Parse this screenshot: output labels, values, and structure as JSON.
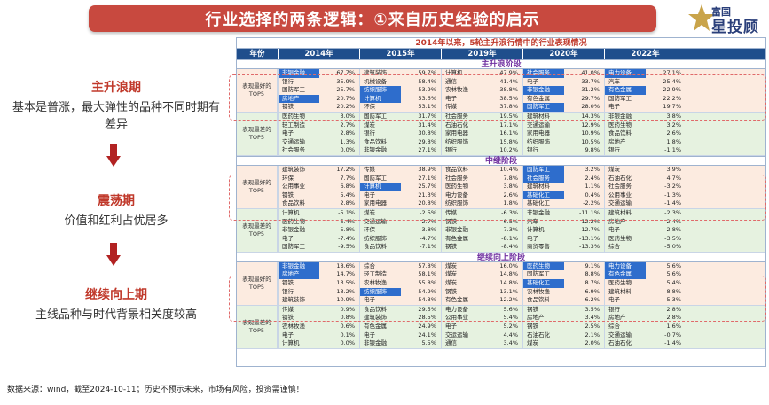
{
  "banner": {
    "title": "行业选择的两条逻辑：①来自历史经验的启示"
  },
  "logo": {
    "top": "富国",
    "main": "星投顾"
  },
  "left_panel": {
    "phases": [
      {
        "title": "主升浪期",
        "desc": "基本是普涨，最大弹性的品种不同时期有差异"
      },
      {
        "title": "震荡期",
        "desc": "价值和红利占优居多"
      },
      {
        "title": "继续向上期",
        "desc": "主线品种与时代背景相关度较高"
      }
    ]
  },
  "table": {
    "title": "2014年以来，5轮主升浪行情中的行业表现情况",
    "header": {
      "label": "年份",
      "years": [
        "2014年",
        "2015年",
        "2019年",
        "2020年",
        "2022年"
      ]
    },
    "best_label": "表现最好的TOP5",
    "worst_label": "表现最差的TOP5",
    "sections": [
      {
        "name": "主升浪阶段",
        "best": [
          [
            [
              "非银金融",
              "67.7%"
            ],
            [
              "银行",
              "35.9%"
            ],
            [
              "国防军工",
              "25.7%"
            ],
            [
              "房地产",
              "20.7%"
            ],
            [
              "钢铁",
              "20.2%"
            ]
          ],
          [
            [
              "建筑装饰",
              "59.7%"
            ],
            [
              "机械设备",
              "58.4%"
            ],
            [
              "纺织服饰",
              "53.9%"
            ],
            [
              "计算机",
              "53.6%"
            ],
            [
              "环保",
              "53.1%"
            ]
          ],
          [
            [
              "计算机",
              "47.9%"
            ],
            [
              "通信",
              "41.4%"
            ],
            [
              "农林牧渔",
              "38.8%"
            ],
            [
              "电子",
              "38.5%"
            ],
            [
              "传媒",
              "37.8%"
            ]
          ],
          [
            [
              "社会服务",
              "41.0%"
            ],
            [
              "电子",
              "33.7%"
            ],
            [
              "非银金融",
              "31.2%"
            ],
            [
              "有色金属",
              "29.7%"
            ],
            [
              "国防军工",
              "28.0%"
            ]
          ],
          [
            [
              "电力设备",
              "27.1%"
            ],
            [
              "汽车",
              "25.4%"
            ],
            [
              "有色金属",
              "22.9%"
            ],
            [
              "国防军工",
              "22.2%"
            ],
            [
              "电子",
              "19.7%"
            ]
          ]
        ],
        "best_hl": [
          [
            true,
            false,
            false,
            true,
            false
          ],
          [
            false,
            false,
            true,
            true,
            false
          ],
          [
            false,
            false,
            false,
            false,
            false
          ],
          [
            true,
            false,
            true,
            false,
            true
          ],
          [
            true,
            false,
            true,
            false,
            false
          ]
        ],
        "worst": [
          [
            [
              "医药生物",
              "3.0%"
            ],
            [
              "轻工制造",
              "2.7%"
            ],
            [
              "电子",
              "2.8%"
            ],
            [
              "交通运输",
              "1.3%"
            ],
            [
              "社会服务",
              "0.0%"
            ]
          ],
          [
            [
              "国防军工",
              "31.7%"
            ],
            [
              "煤炭",
              "31.4%"
            ],
            [
              "银行",
              "30.8%"
            ],
            [
              "食品饮料",
              "29.8%"
            ],
            [
              "非银金融",
              "27.1%"
            ]
          ],
          [
            [
              "社会服务",
              "19.5%"
            ],
            [
              "石油石化",
              "17.1%"
            ],
            [
              "家用电器",
              "16.1%"
            ],
            [
              "纺织服饰",
              "15.8%"
            ],
            [
              "银行",
              "10.2%"
            ]
          ],
          [
            [
              "建筑材料",
              "14.3%"
            ],
            [
              "交通运输",
              "12.9%"
            ],
            [
              "家用电器",
              "10.9%"
            ],
            [
              "纺织服饰",
              "10.5%"
            ],
            [
              "银行",
              "9.8%"
            ]
          ],
          [
            [
              "非银金融",
              "3.8%"
            ],
            [
              "医药生物",
              "3.2%"
            ],
            [
              "食品饮料",
              "2.6%"
            ],
            [
              "房地产",
              "1.8%"
            ],
            [
              "银行",
              "-1.1%"
            ]
          ]
        ]
      },
      {
        "name": "中继阶段",
        "best": [
          [
            [
              "建筑装饰",
              "17.2%"
            ],
            [
              "环保",
              "7.7%"
            ],
            [
              "公用事业",
              "6.8%"
            ],
            [
              "钢铁",
              "5.4%"
            ],
            [
              "食品饮料",
              "2.8%"
            ]
          ],
          [
            [
              "传媒",
              "38.9%"
            ],
            [
              "国防军工",
              "27.1%"
            ],
            [
              "计算机",
              "25.7%"
            ],
            [
              "电子",
              "21.3%"
            ],
            [
              "家用电器",
              "20.8%"
            ]
          ],
          [
            [
              "食品饮料",
              "10.4%"
            ],
            [
              "社会服务",
              "7.8%"
            ],
            [
              "医药生物",
              "3.8%"
            ],
            [
              "电力设备",
              "2.6%"
            ],
            [
              "纺织服饰",
              "1.8%"
            ]
          ],
          [
            [
              "国防军工",
              "3.2%"
            ],
            [
              "社会服务",
              "2.4%"
            ],
            [
              "建筑材料",
              "1.1%"
            ],
            [
              "基础化工",
              "0.4%"
            ],
            [
              "基础化工",
              "-2.2%"
            ]
          ],
          [
            [
              "煤炭",
              "3.9%"
            ],
            [
              "石油石化",
              "4.7%"
            ],
            [
              "社会服务",
              "-3.2%"
            ],
            [
              "公用事业",
              "-1.3%"
            ],
            [
              "交通运输",
              "-1.4%"
            ]
          ]
        ],
        "best_hl": [
          [
            false,
            false,
            false,
            false,
            false
          ],
          [
            false,
            false,
            true,
            false,
            false
          ],
          [
            false,
            false,
            false,
            false,
            false
          ],
          [
            true,
            true,
            false,
            true,
            false
          ],
          [
            false,
            false,
            false,
            false,
            false
          ]
        ],
        "worst": [
          [
            [
              "计算机",
              "-5.1%"
            ],
            [
              "医药生物",
              "-5.4%"
            ],
            [
              "非银金融",
              "-5.8%"
            ],
            [
              "电子",
              "-7.4%"
            ],
            [
              "国防军工",
              "-9.5%"
            ]
          ],
          [
            [
              "煤炭",
              "-2.5%"
            ],
            [
              "交通运输",
              "-2.7%"
            ],
            [
              "环保",
              "-3.8%"
            ],
            [
              "纺织服饰",
              "-4.7%"
            ],
            [
              "食品饮料",
              "-7.1%"
            ]
          ],
          [
            [
              "传媒",
              "-6.3%"
            ],
            [
              "钢铁",
              "-6.5%"
            ],
            [
              "非银金融",
              "-7.3%"
            ],
            [
              "有色金属",
              "-8.1%"
            ],
            [
              "钢铁",
              "-8.4%"
            ]
          ],
          [
            [
              "非银金融",
              "-11.1%"
            ],
            [
              "汽车",
              "-12.2%"
            ],
            [
              "计算机",
              "-12.7%"
            ],
            [
              "电子",
              "-13.1%"
            ],
            [
              "商贸零售",
              "-13.3%"
            ]
          ],
          [
            [
              "建筑材料",
              "-2.3%"
            ],
            [
              "房地产",
              "-2.4%"
            ],
            [
              "电子",
              "-2.8%"
            ],
            [
              "医药生物",
              "-3.5%"
            ],
            [
              "综合",
              "-5.0%"
            ]
          ]
        ]
      },
      {
        "name": "继续向上阶段",
        "best": [
          [
            [
              "非银金融",
              "18.6%"
            ],
            [
              "房地产",
              "14.7%"
            ],
            [
              "钢铁",
              "13.5%"
            ],
            [
              "银行",
              "13.2%"
            ],
            [
              "建筑装饰",
              "10.9%"
            ]
          ],
          [
            [
              "综合",
              "57.8%"
            ],
            [
              "轻工制造",
              "58.1%"
            ],
            [
              "农林牧渔",
              "55.8%"
            ],
            [
              "纺织服饰",
              "54.9%"
            ],
            [
              "电子",
              "54.3%"
            ]
          ],
          [
            [
              "煤炭",
              "16.0%"
            ],
            [
              "煤炭",
              "14.8%"
            ],
            [
              "煤炭",
              "14.8%"
            ],
            [
              "钢铁",
              "13.1%"
            ],
            [
              "有色金属",
              "12.2%"
            ]
          ],
          [
            [
              "医药生物",
              "9.1%"
            ],
            [
              "国防军工",
              "8.8%"
            ],
            [
              "基础化工",
              "8.7%"
            ],
            [
              "农林牧渔",
              "6.9%"
            ],
            [
              "食品饮料",
              "6.2%"
            ]
          ],
          [
            [
              "电力设备",
              "5.6%"
            ],
            [
              "有色金属",
              "5.6%"
            ],
            [
              "医药生物",
              "5.4%"
            ],
            [
              "建筑材料",
              "8.8%"
            ],
            [
              "电子",
              "5.3%"
            ]
          ]
        ],
        "best_hl": [
          [
            true,
            true,
            false,
            false,
            false
          ],
          [
            false,
            false,
            false,
            true,
            false
          ],
          [
            false,
            false,
            false,
            false,
            false
          ],
          [
            true,
            false,
            true,
            false,
            false
          ],
          [
            true,
            true,
            false,
            false,
            false
          ]
        ],
        "worst": [
          [
            [
              "传媒",
              "0.9%"
            ],
            [
              "钢铁",
              "0.8%"
            ],
            [
              "农林牧渔",
              "0.6%"
            ],
            [
              "电子",
              "0.1%"
            ],
            [
              "计算机",
              "0.0%"
            ]
          ],
          [
            [
              "食品饮料",
              "29.5%"
            ],
            [
              "建筑装饰",
              "28.5%"
            ],
            [
              "有色金属",
              "24.9%"
            ],
            [
              "电子",
              "24.1%"
            ],
            [
              "非银金融",
              "5.5%"
            ]
          ],
          [
            [
              "电力设备",
              "5.6%"
            ],
            [
              "公用事业",
              "5.4%"
            ],
            [
              "电子",
              "5.2%"
            ],
            [
              "交运运输",
              "4.4%"
            ],
            [
              "通信",
              "3.4%"
            ]
          ],
          [
            [
              "钢铁",
              "3.5%"
            ],
            [
              "房地产",
              "3.4%"
            ],
            [
              "钢铁",
              "2.5%"
            ],
            [
              "石油石化",
              "2.1%"
            ],
            [
              "煤炭",
              "2.0%"
            ]
          ],
          [
            [
              "银行",
              "2.8%"
            ],
            [
              "房地产",
              "2.8%"
            ],
            [
              "综合",
              "1.6%"
            ],
            [
              "交通运输",
              "-0.7%"
            ],
            [
              "石油石化",
              "-1.4%"
            ]
          ]
        ]
      }
    ]
  },
  "source": "数据来源：wind，截至2024-10-11；历史不预示未来，市场有风险，投资需谨慎！"
}
